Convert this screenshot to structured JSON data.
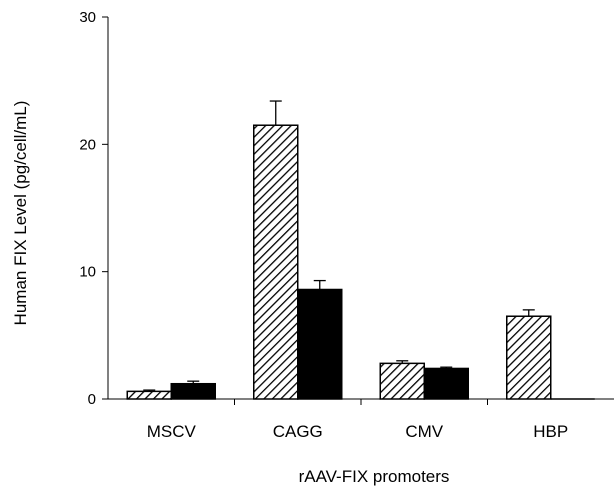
{
  "chart_data": {
    "type": "bar",
    "title": "",
    "xlabel": "rAAV-FIX promoters",
    "ylabel": "Human FIX Level (pg/cell/mL)",
    "ylim": [
      0,
      30
    ],
    "yticks": [
      0,
      10,
      20,
      30
    ],
    "grid": false,
    "legend": "none",
    "categories": [
      "MSCV",
      "CAGG",
      "CMV",
      "HBP"
    ],
    "series": [
      {
        "pattern": "diagonal-hatch",
        "color": "#000000",
        "values": [
          0.6,
          21.5,
          2.8,
          6.5
        ],
        "errors": [
          0.1,
          1.9,
          0.2,
          0.5
        ]
      },
      {
        "pattern": "solid",
        "color": "#000000",
        "values": [
          1.2,
          8.6,
          2.4,
          0.0
        ],
        "errors": [
          0.2,
          0.7,
          0.1,
          0.0
        ]
      }
    ]
  }
}
